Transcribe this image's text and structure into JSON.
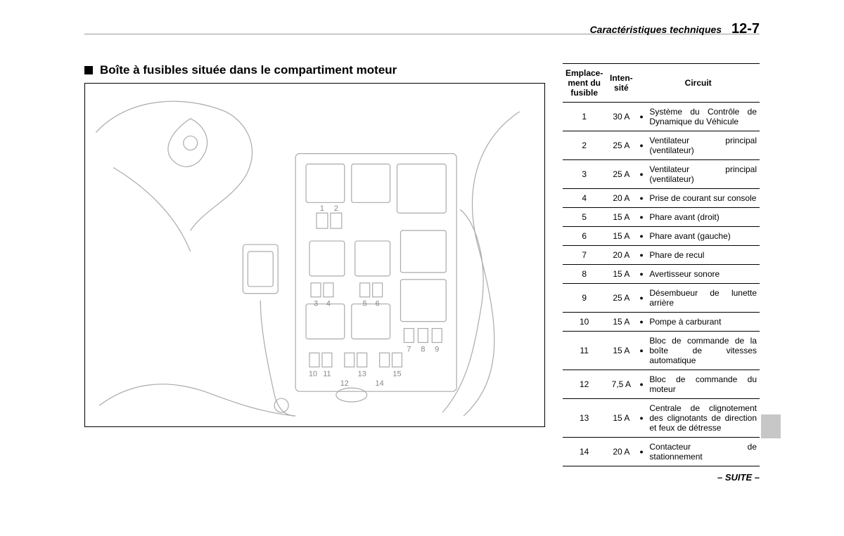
{
  "header": {
    "section_title": "Caractéristiques techniques",
    "page_number": "12-7"
  },
  "main": {
    "heading": "Boîte à fusibles située dans le compartiment moteur",
    "diagram": {
      "type": "line-drawing",
      "description": "Engine compartment fuse box schematic",
      "frame_color": "#000000",
      "line_color": "#888888",
      "labels": [
        "1",
        "2",
        "3",
        "4",
        "5",
        "6",
        "7",
        "8",
        "9",
        "10",
        "11",
        "12",
        "13",
        "14",
        "15"
      ]
    }
  },
  "table": {
    "columns": [
      "Emplace-\nment du\nfusible",
      "Inten-\nsité",
      "Circuit"
    ],
    "rows": [
      {
        "loc": "1",
        "amp": "30 A",
        "bullet": "●",
        "desc": "Système du Contrôle de Dynamique du Véhicule"
      },
      {
        "loc": "2",
        "amp": "25 A",
        "bullet": "●",
        "desc": "Ventilateur principal (ventilateur)"
      },
      {
        "loc": "3",
        "amp": "25 A",
        "bullet": "●",
        "desc": "Ventilateur principal (ventilateur)"
      },
      {
        "loc": "4",
        "amp": "20 A",
        "bullet": "●",
        "desc": "Prise de courant sur console"
      },
      {
        "loc": "5",
        "amp": "15 A",
        "bullet": "●",
        "desc": "Phare avant (droit)"
      },
      {
        "loc": "6",
        "amp": "15 A",
        "bullet": "●",
        "desc": "Phare avant (gauche)"
      },
      {
        "loc": "7",
        "amp": "20 A",
        "bullet": "●",
        "desc": "Phare de recul"
      },
      {
        "loc": "8",
        "amp": "15 A",
        "bullet": "●",
        "desc": "Avertisseur sonore"
      },
      {
        "loc": "9",
        "amp": "25 A",
        "bullet": "●",
        "desc": "Désembueur de lunette arrière"
      },
      {
        "loc": "10",
        "amp": "15 A",
        "bullet": "●",
        "desc": "Pompe à carburant"
      },
      {
        "loc": "11",
        "amp": "15 A",
        "bullet": "●",
        "desc": "Bloc de commande de la boîte de vitesses automatique"
      },
      {
        "loc": "12",
        "amp": "7,5 A",
        "bullet": "●",
        "desc": "Bloc de commande du moteur"
      },
      {
        "loc": "13",
        "amp": "15 A",
        "bullet": "●",
        "desc": "Centrale de clignotement des clignotants de direction et feux de détresse"
      },
      {
        "loc": "14",
        "amp": "20 A",
        "bullet": "●",
        "desc": "Contacteur de stationnement"
      }
    ]
  },
  "footer": {
    "continuation": "– SUITE –"
  },
  "styles": {
    "body_font_family": "Arial",
    "rule_color": "#999999",
    "table_border_color": "#000000",
    "sidetab_color": "#c7c7c7"
  }
}
